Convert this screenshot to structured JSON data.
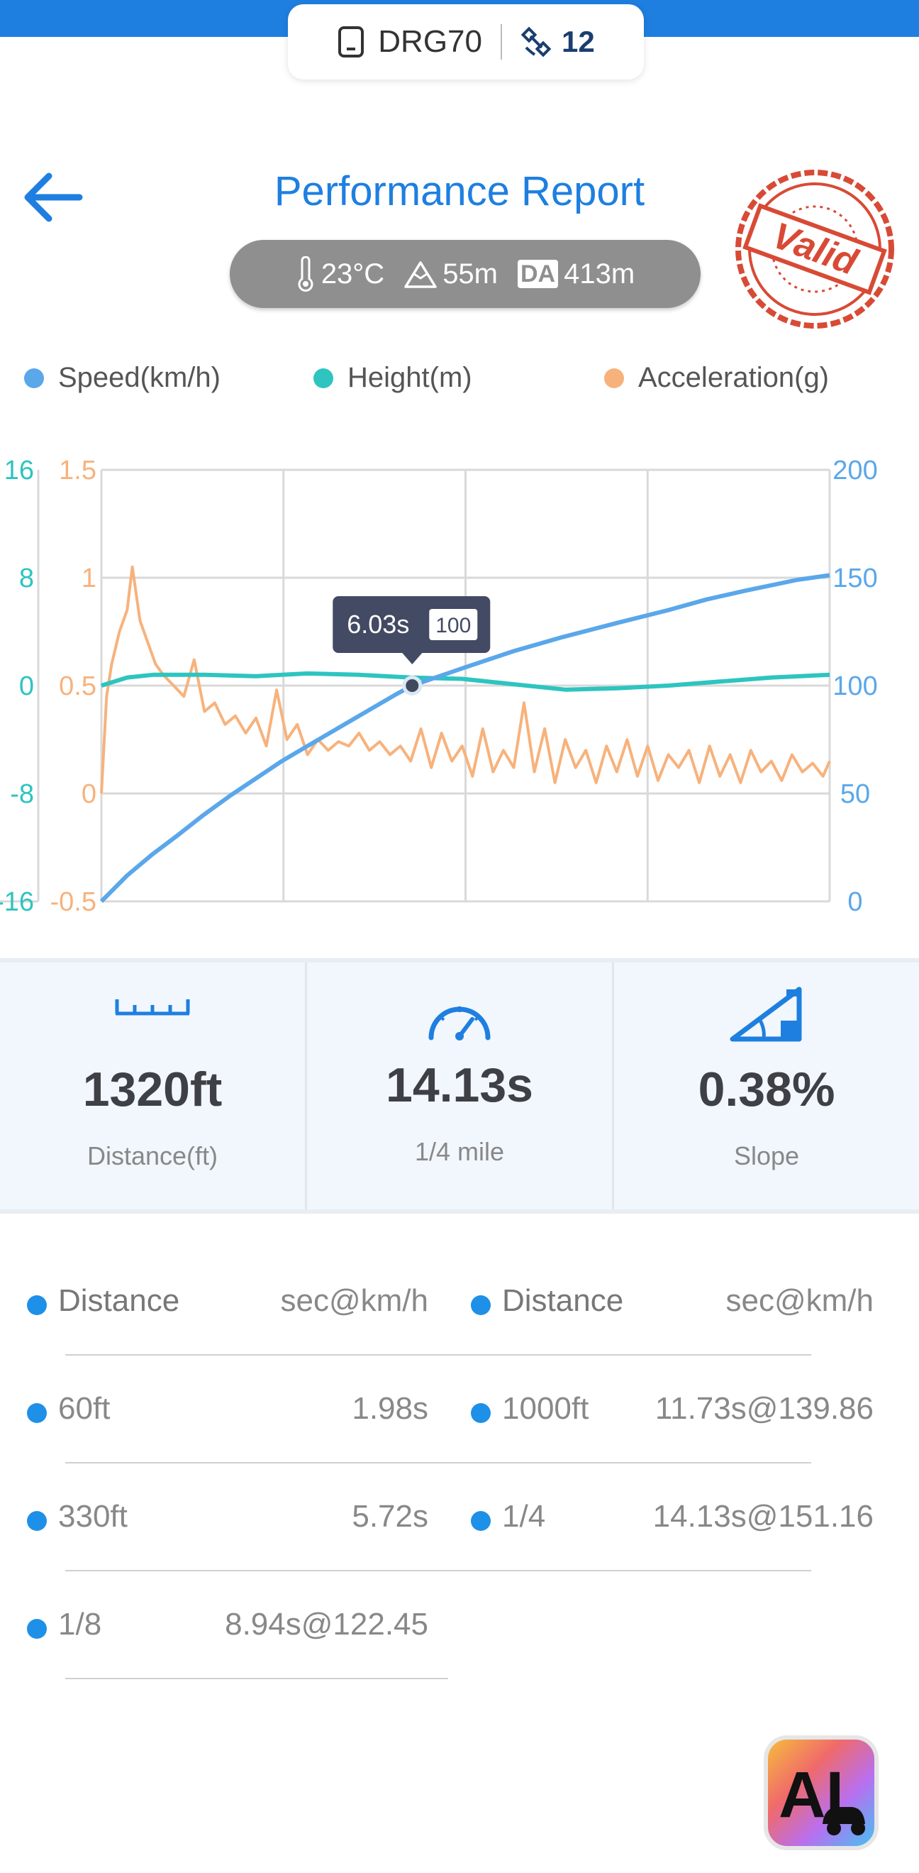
{
  "device": {
    "name": "DRG70",
    "satellites": "12"
  },
  "header": {
    "title": "Performance Report",
    "stamp_text": "Valid"
  },
  "conditions": {
    "temperature": "23°C",
    "altitude": "55m",
    "da_label": "DA",
    "density_altitude": "413m"
  },
  "legend": [
    {
      "label": "Speed(km/h)",
      "color": "#5aa7ea"
    },
    {
      "label": "Height(m)",
      "color": "#2ec4c0"
    },
    {
      "label": "Acceleration(g)",
      "color": "#f7b27c"
    }
  ],
  "chart_data": {
    "type": "line",
    "x_range": [
      0,
      14.13
    ],
    "axes": {
      "height_ticks": [
        "16",
        "8",
        "0",
        "-8",
        "-16"
      ],
      "accel_ticks": [
        "1.5",
        "1",
        "0.5",
        "0",
        "-0.5"
      ],
      "speed_ticks": [
        "200",
        "150",
        "100",
        "50",
        "0"
      ]
    },
    "series": [
      {
        "name": "Speed(km/h)",
        "axis": "speed",
        "color": "#5aa7ea",
        "x": [
          0,
          0.5,
          1,
          1.5,
          1.98,
          2.5,
          3,
          3.5,
          4,
          4.5,
          5,
          5.72,
          6.03,
          7,
          8,
          8.94,
          10,
          11,
          11.73,
          12.5,
          13.5,
          14.13
        ],
        "y": [
          0,
          12,
          22,
          31,
          40,
          49,
          57,
          65,
          72,
          79,
          86,
          96,
          100,
          108,
          116,
          122.45,
          129,
          135,
          139.86,
          144,
          149,
          151.16
        ]
      },
      {
        "name": "Height(m)",
        "axis": "height",
        "color": "#2ec4c0",
        "x": [
          0,
          0.5,
          1,
          2,
          3,
          4,
          5,
          6,
          7,
          8,
          9,
          10,
          11,
          12,
          13,
          14.13
        ],
        "y": [
          0,
          0.6,
          0.8,
          0.8,
          0.7,
          0.9,
          0.8,
          0.6,
          0.5,
          0.1,
          -0.3,
          -0.2,
          0,
          0.3,
          0.6,
          0.8
        ]
      },
      {
        "name": "Acceleration(g)",
        "axis": "accel",
        "color": "#f7b27c",
        "x": [
          0,
          0.1,
          0.2,
          0.35,
          0.5,
          0.6,
          0.75,
          0.9,
          1.05,
          1.2,
          1.4,
          1.6,
          1.8,
          2.0,
          2.2,
          2.4,
          2.6,
          2.8,
          3.0,
          3.2,
          3.4,
          3.6,
          3.8,
          4.0,
          4.2,
          4.4,
          4.6,
          4.8,
          5.0,
          5.2,
          5.4,
          5.6,
          5.8,
          6.0,
          6.2,
          6.4,
          6.6,
          6.8,
          7.0,
          7.2,
          7.4,
          7.6,
          7.8,
          8.0,
          8.2,
          8.4,
          8.6,
          8.8,
          9.0,
          9.2,
          9.4,
          9.6,
          9.8,
          10.0,
          10.2,
          10.4,
          10.6,
          10.8,
          11.0,
          11.2,
          11.4,
          11.6,
          11.8,
          12.0,
          12.2,
          12.4,
          12.6,
          12.8,
          13.0,
          13.2,
          13.4,
          13.6,
          13.8,
          14.0,
          14.13
        ],
        "y": [
          0,
          0.45,
          0.6,
          0.75,
          0.85,
          1.05,
          0.8,
          0.7,
          0.6,
          0.55,
          0.5,
          0.45,
          0.62,
          0.38,
          0.42,
          0.32,
          0.36,
          0.28,
          0.35,
          0.22,
          0.48,
          0.25,
          0.32,
          0.18,
          0.25,
          0.2,
          0.24,
          0.22,
          0.28,
          0.2,
          0.24,
          0.18,
          0.22,
          0.15,
          0.3,
          0.12,
          0.28,
          0.15,
          0.22,
          0.08,
          0.3,
          0.1,
          0.2,
          0.12,
          0.42,
          0.1,
          0.3,
          0.05,
          0.25,
          0.12,
          0.2,
          0.05,
          0.22,
          0.1,
          0.25,
          0.08,
          0.22,
          0.06,
          0.18,
          0.12,
          0.2,
          0.05,
          0.22,
          0.08,
          0.18,
          0.05,
          0.2,
          0.1,
          0.15,
          0.06,
          0.18,
          0.1,
          0.14,
          0.08,
          0.15
        ]
      }
    ],
    "tooltip": {
      "time": "6.03s",
      "value": "100",
      "x": 6.03,
      "speed": 100
    }
  },
  "stats": [
    {
      "value": "1320ft",
      "label": "Distance(ft)",
      "icon": "ruler-icon"
    },
    {
      "value": "14.13s",
      "label": "1/4 mile",
      "icon": "speedometer-icon"
    },
    {
      "value": "0.38%",
      "label": "Slope",
      "icon": "slope-icon"
    }
  ],
  "splits": {
    "header": {
      "distance": "Distance",
      "value": "sec@km/h"
    },
    "left": [
      {
        "k": "60ft",
        "v": "1.98s"
      },
      {
        "k": "330ft",
        "v": "5.72s"
      },
      {
        "k": "1/8",
        "v": "8.94s@122.45"
      }
    ],
    "right": [
      {
        "k": "1000ft",
        "v": "11.73s@139.86"
      },
      {
        "k": "1/4",
        "v": "14.13s@151.16"
      }
    ]
  },
  "ai_button": {
    "label": "AI"
  }
}
